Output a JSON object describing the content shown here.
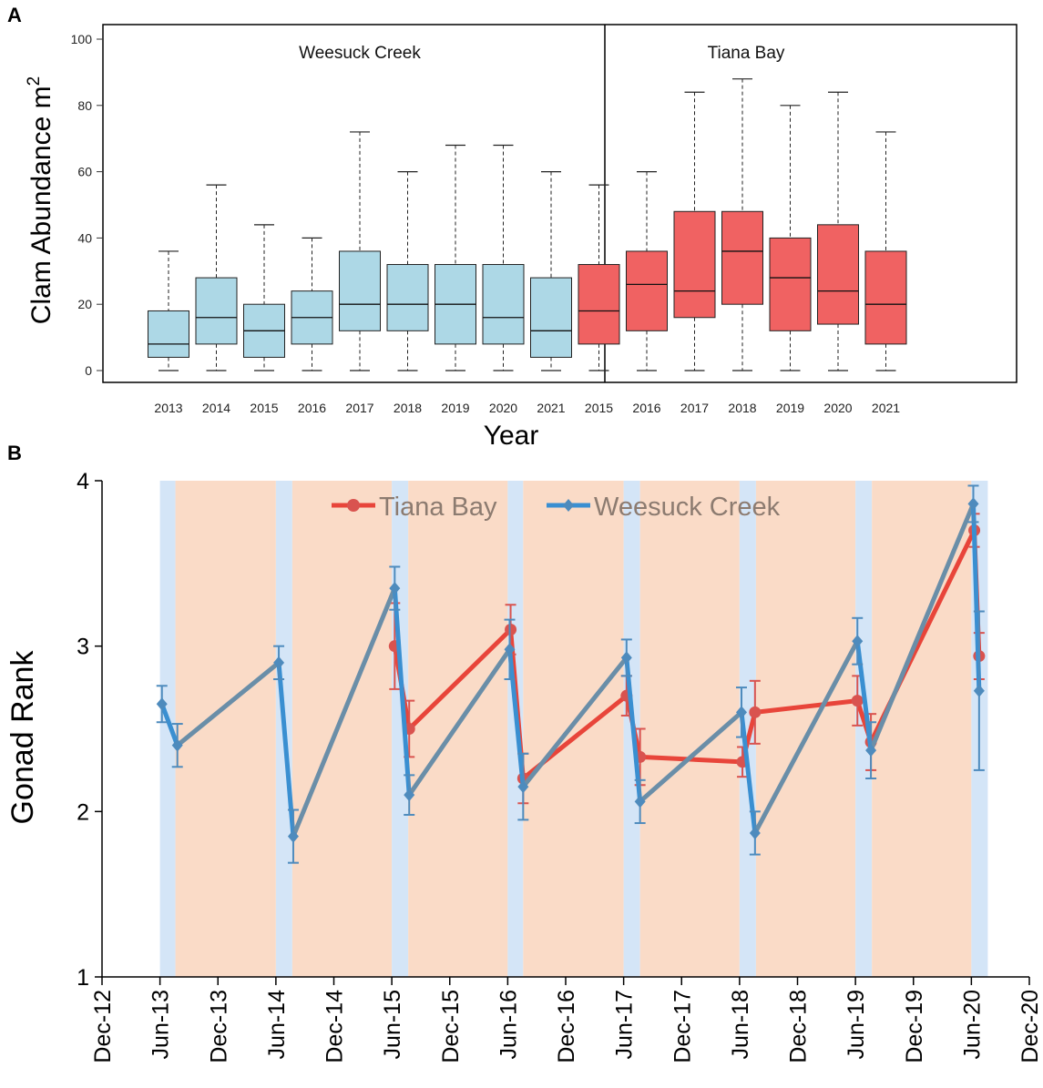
{
  "colors": {
    "weesuck_box": "#add8e6",
    "tiana_box": "#f06262",
    "tiana_line": "#e8453a",
    "tiana_marker": "#d9534f",
    "weesuck_line": "#3a8fd1",
    "weesuck_line_b": "#6a8ea8",
    "weesuck_marker": "#4e8bbd",
    "band_blue": "#d4e5f7",
    "band_orange": "#fadbc7"
  },
  "chart_data": [
    {
      "panel": "A",
      "type": "boxplot",
      "ylabel": "Clam Abundance m",
      "ylabel_sup": "2",
      "xlabel": "Year",
      "ylim": [
        0,
        100
      ],
      "yticks": [
        0,
        20,
        40,
        60,
        80,
        100
      ],
      "groups": [
        {
          "name": "Weesuck Creek",
          "color_key": "weesuck_box",
          "boxes": [
            {
              "year": "2013",
              "min": 0,
              "q1": 4,
              "median": 8,
              "q3": 18,
              "max": 36
            },
            {
              "year": "2014",
              "min": 0,
              "q1": 8,
              "median": 16,
              "q3": 28,
              "max": 56
            },
            {
              "year": "2015",
              "min": 0,
              "q1": 4,
              "median": 12,
              "q3": 20,
              "max": 44
            },
            {
              "year": "2016",
              "min": 0,
              "q1": 8,
              "median": 16,
              "q3": 24,
              "max": 40
            },
            {
              "year": "2017",
              "min": 0,
              "q1": 12,
              "median": 20,
              "q3": 36,
              "max": 72
            },
            {
              "year": "2018",
              "min": 0,
              "q1": 12,
              "median": 20,
              "q3": 32,
              "max": 60
            },
            {
              "year": "2019",
              "min": 0,
              "q1": 8,
              "median": 20,
              "q3": 32,
              "max": 68
            },
            {
              "year": "2020",
              "min": 0,
              "q1": 8,
              "median": 16,
              "q3": 32,
              "max": 68
            },
            {
              "year": "2021",
              "min": 0,
              "q1": 4,
              "median": 12,
              "q3": 28,
              "max": 60
            }
          ]
        },
        {
          "name": "Tiana Bay",
          "color_key": "tiana_box",
          "boxes": [
            {
              "year": "2015",
              "min": 0,
              "q1": 8,
              "median": 18,
              "q3": 32,
              "max": 56
            },
            {
              "year": "2016",
              "min": 0,
              "q1": 12,
              "median": 26,
              "q3": 36,
              "max": 60
            },
            {
              "year": "2017",
              "min": 0,
              "q1": 16,
              "median": 24,
              "q3": 48,
              "max": 84
            },
            {
              "year": "2018",
              "min": 0,
              "q1": 20,
              "median": 36,
              "q3": 48,
              "max": 88
            },
            {
              "year": "2019",
              "min": 0,
              "q1": 12,
              "median": 28,
              "q3": 40,
              "max": 80
            },
            {
              "year": "2020",
              "min": 0,
              "q1": 14,
              "median": 24,
              "q3": 44,
              "max": 84
            },
            {
              "year": "2021",
              "min": 0,
              "q1": 8,
              "median": 20,
              "q3": 36,
              "max": 72
            }
          ]
        }
      ]
    },
    {
      "panel": "B",
      "type": "line",
      "ylabel": "Gonad Rank",
      "ylim": [
        1,
        4
      ],
      "yticks": [
        1,
        2,
        3,
        4
      ],
      "x_unit": "months since Dec-12",
      "xticks": [
        {
          "label": "Dec-12",
          "m": 0
        },
        {
          "label": "Jun-13",
          "m": 6
        },
        {
          "label": "Dec-13",
          "m": 12
        },
        {
          "label": "Jun-14",
          "m": 18
        },
        {
          "label": "Dec-14",
          "m": 24
        },
        {
          "label": "Jun-15",
          "m": 30
        },
        {
          "label": "Dec-15",
          "m": 36
        },
        {
          "label": "Jun-16",
          "m": 42
        },
        {
          "label": "Dec-16",
          "m": 48
        },
        {
          "label": "Jun-17",
          "m": 54
        },
        {
          "label": "Dec-17",
          "m": 60
        },
        {
          "label": "Jun-18",
          "m": 66
        },
        {
          "label": "Dec-18",
          "m": 72
        },
        {
          "label": "Jun-19",
          "m": 78
        },
        {
          "label": "Dec-19",
          "m": 84
        },
        {
          "label": "Jun-20",
          "m": 90
        },
        {
          "label": "Dec-20",
          "m": 96
        }
      ],
      "xlim": [
        0,
        96
      ],
      "bands": [
        {
          "start": 6,
          "end": 7.6,
          "color_key": "band_blue"
        },
        {
          "start": 7.6,
          "end": 18,
          "color_key": "band_orange"
        },
        {
          "start": 18,
          "end": 19.7,
          "color_key": "band_blue"
        },
        {
          "start": 19.7,
          "end": 30,
          "color_key": "band_orange"
        },
        {
          "start": 30,
          "end": 31.7,
          "color_key": "band_blue"
        },
        {
          "start": 31.7,
          "end": 42,
          "color_key": "band_orange"
        },
        {
          "start": 42,
          "end": 43.6,
          "color_key": "band_blue"
        },
        {
          "start": 43.6,
          "end": 54,
          "color_key": "band_orange"
        },
        {
          "start": 54,
          "end": 55.7,
          "color_key": "band_blue"
        },
        {
          "start": 55.7,
          "end": 66,
          "color_key": "band_orange"
        },
        {
          "start": 66,
          "end": 67.7,
          "color_key": "band_blue"
        },
        {
          "start": 67.7,
          "end": 78,
          "color_key": "band_orange"
        },
        {
          "start": 78,
          "end": 79.7,
          "color_key": "band_blue"
        },
        {
          "start": 79.7,
          "end": 90,
          "color_key": "band_orange"
        },
        {
          "start": 90,
          "end": 91.7,
          "color_key": "band_blue"
        }
      ],
      "series": [
        {
          "name": "Tiana Bay",
          "marker": "circle",
          "line_color_key": "tiana_line",
          "marker_color_key": "tiana_marker",
          "points": [
            {
              "m": 30.3,
              "y": 3.0,
              "err": 0.26
            },
            {
              "m": 31.8,
              "y": 2.5,
              "err": 0.17
            },
            {
              "m": 42.3,
              "y": 3.1,
              "err": 0.15
            },
            {
              "m": 43.6,
              "y": 2.2,
              "err": 0.15
            },
            {
              "m": 54.3,
              "y": 2.7,
              "err": 0.12
            },
            {
              "m": 55.7,
              "y": 2.33,
              "err": 0.17
            },
            {
              "m": 66.3,
              "y": 2.3,
              "err": 0.09
            },
            {
              "m": 67.6,
              "y": 2.6,
              "err": 0.19
            },
            {
              "m": 78.2,
              "y": 2.67,
              "err": 0.15
            },
            {
              "m": 79.6,
              "y": 2.42,
              "err": 0.17
            },
            {
              "m": 90.3,
              "y": 3.7,
              "err": 0.1
            },
            {
              "m": 90.8,
              "y": 2.94,
              "err": 0.14
            }
          ]
        },
        {
          "name": "Weesuck Creek",
          "marker": "diamond",
          "line_color_key": "weesuck_line",
          "line2_color_key": "weesuck_line_b",
          "marker_color_key": "weesuck_marker",
          "points": [
            {
              "m": 6.2,
              "y": 2.65,
              "err": 0.11
            },
            {
              "m": 7.8,
              "y": 2.4,
              "err": 0.13
            },
            {
              "m": 18.3,
              "y": 2.9,
              "err": 0.1
            },
            {
              "m": 19.8,
              "y": 1.85,
              "err": 0.16
            },
            {
              "m": 30.3,
              "y": 3.35,
              "err": 0.13
            },
            {
              "m": 31.8,
              "y": 2.1,
              "err": 0.12
            },
            {
              "m": 42.2,
              "y": 2.98,
              "err": 0.18
            },
            {
              "m": 43.6,
              "y": 2.15,
              "err": 0.2
            },
            {
              "m": 54.3,
              "y": 2.93,
              "err": 0.11
            },
            {
              "m": 55.7,
              "y": 2.06,
              "err": 0.13
            },
            {
              "m": 66.2,
              "y": 2.6,
              "err": 0.15
            },
            {
              "m": 67.6,
              "y": 1.87,
              "err": 0.13
            },
            {
              "m": 78.2,
              "y": 3.03,
              "err": 0.14
            },
            {
              "m": 79.6,
              "y": 2.37,
              "err": 0.17
            },
            {
              "m": 90.2,
              "y": 3.86,
              "err": 0.11
            },
            {
              "m": 90.8,
              "y": 2.73,
              "err": 0.48
            }
          ]
        }
      ]
    }
  ]
}
